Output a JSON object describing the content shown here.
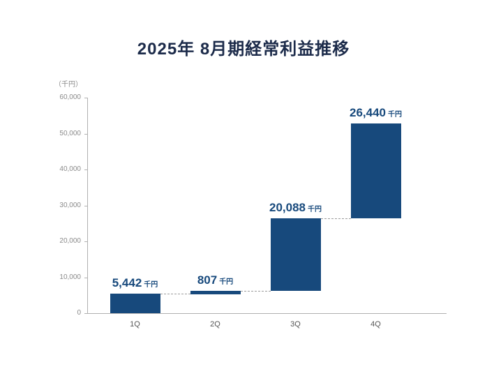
{
  "page": {
    "background": "#ffffff"
  },
  "chart_data": {
    "type": "bar",
    "subtype": "waterfall-cumulative",
    "title": "2025年 8月期経常利益推移",
    "unit_label": "（千円）",
    "value_unit": "千円",
    "categories": [
      "1Q",
      "2Q",
      "3Q",
      "4Q"
    ],
    "values": [
      5442,
      807,
      20088,
      26440
    ],
    "cumulative_totals": [
      5442,
      6249,
      26337,
      52777
    ],
    "data_labels": [
      "5,442",
      "807",
      "20,088",
      "26,440"
    ],
    "ylim": [
      0,
      60000
    ],
    "yticks": [
      0,
      10000,
      20000,
      30000,
      40000,
      50000,
      60000
    ],
    "ytick_labels": [
      "0",
      "10,000",
      "20,000",
      "30,000",
      "40,000",
      "50,000",
      "60,000"
    ],
    "grid": false,
    "legend": false,
    "colors": {
      "bar": "#17497C",
      "data_label": "#17497C",
      "title": "#1C2B4A",
      "axis_line": "#B0B0B0",
      "tick_text": "#8A8A8A",
      "category_text": "#555555",
      "connector": "#9B9B9B"
    }
  }
}
